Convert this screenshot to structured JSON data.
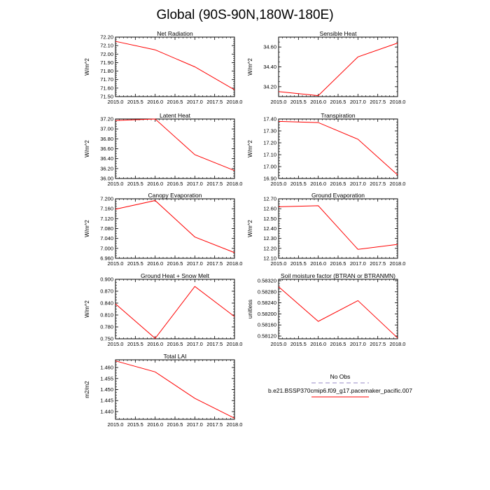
{
  "figure": {
    "title": "Global (90S-90N,180W-180E)"
  },
  "legend": {
    "entries": [
      {
        "label": "No Obs",
        "color": "#b8b0d8",
        "dashed": true
      },
      {
        "label": "b.e21.BSSP370cmip6.f09_g17.pacemaker_pacific.007",
        "color": "#ff0000",
        "dashed": false
      }
    ]
  },
  "chart_data": [
    {
      "type": "line",
      "title": "Net Radiation",
      "xlabel": "",
      "ylabel": "W/m^2",
      "xlim": [
        2015.0,
        2018.0
      ],
      "ylim": [
        71.5,
        72.2
      ],
      "xticks": [
        "2015.0",
        "2015.5",
        "2016.0",
        "2016.5",
        "2017.0",
        "2017.5",
        "2018.0"
      ],
      "yticks": [
        "71.50",
        "71.60",
        "71.70",
        "71.80",
        "71.90",
        "72.00",
        "72.10",
        "72.20"
      ],
      "series": [
        {
          "name": "b.e21.BSSP370cmip6.f09_g17.pacemaker_pacific.007",
          "x": [
            2015,
            2016,
            2017,
            2018
          ],
          "y": [
            72.15,
            72.05,
            71.85,
            71.58
          ]
        }
      ]
    },
    {
      "type": "line",
      "title": "Sensible Heat",
      "xlabel": "",
      "ylabel": "W/m^2",
      "xlim": [
        2015.0,
        2018.0
      ],
      "ylim": [
        34.1,
        34.7
      ],
      "xticks": [
        "2015.0",
        "2015.5",
        "2016.0",
        "2016.5",
        "2017.0",
        "2017.5",
        "2018.0"
      ],
      "yticks": [
        "34.20",
        "34.40",
        "34.60"
      ],
      "series": [
        {
          "name": "b.e21.BSSP370cmip6.f09_g17.pacemaker_pacific.007",
          "x": [
            2015,
            2016,
            2017,
            2018
          ],
          "y": [
            34.15,
            34.11,
            34.5,
            34.64
          ]
        }
      ]
    },
    {
      "type": "line",
      "title": "Latent Heat",
      "xlabel": "",
      "ylabel": "W/m^2",
      "xlim": [
        2015.0,
        2018.0
      ],
      "ylim": [
        36.0,
        37.2
      ],
      "xticks": [
        "2015.0",
        "2015.5",
        "2016.0",
        "2016.5",
        "2017.0",
        "2017.5",
        "2018.0"
      ],
      "yticks": [
        "36.00",
        "36.20",
        "36.40",
        "36.60",
        "36.80",
        "37.00",
        "37.20"
      ],
      "series": [
        {
          "name": "b.e21.BSSP370cmip6.f09_g17.pacemaker_pacific.007",
          "x": [
            2015,
            2016,
            2017,
            2018
          ],
          "y": [
            37.17,
            37.2,
            36.48,
            36.16
          ]
        }
      ]
    },
    {
      "type": "line",
      "title": "Transpiration",
      "xlabel": "",
      "ylabel": "W/m^2",
      "xlim": [
        2015.0,
        2018.0
      ],
      "ylim": [
        16.9,
        17.4
      ],
      "xticks": [
        "2015.0",
        "2015.5",
        "2016.0",
        "2016.5",
        "2017.0",
        "2017.5",
        "2018.0"
      ],
      "yticks": [
        "16.90",
        "17.00",
        "17.10",
        "17.20",
        "17.30",
        "17.40"
      ],
      "series": [
        {
          "name": "b.e21.BSSP370cmip6.f09_g17.pacemaker_pacific.007",
          "x": [
            2015,
            2016,
            2017,
            2018
          ],
          "y": [
            17.38,
            17.37,
            17.23,
            16.93
          ]
        }
      ]
    },
    {
      "type": "line",
      "title": "Canopy Evaporation",
      "xlabel": "",
      "ylabel": "W/m^2",
      "xlim": [
        2015.0,
        2018.0
      ],
      "ylim": [
        6.96,
        7.2
      ],
      "xticks": [
        "2015.0",
        "2015.5",
        "2016.0",
        "2016.5",
        "2017.0",
        "2017.5",
        "2018.0"
      ],
      "yticks": [
        "6.960",
        "7.000",
        "7.040",
        "7.080",
        "7.120",
        "7.160",
        "7.200"
      ],
      "series": [
        {
          "name": "b.e21.BSSP370cmip6.f09_g17.pacemaker_pacific.007",
          "x": [
            2015,
            2016,
            2017,
            2018
          ],
          "y": [
            7.158,
            7.193,
            7.046,
            6.983
          ]
        }
      ]
    },
    {
      "type": "line",
      "title": "Ground Evaporation",
      "xlabel": "",
      "ylabel": "W/m^2",
      "xlim": [
        2015.0,
        2018.0
      ],
      "ylim": [
        12.1,
        12.7
      ],
      "xticks": [
        "2015.0",
        "2015.5",
        "2016.0",
        "2016.5",
        "2017.0",
        "2017.5",
        "2018.0"
      ],
      "yticks": [
        "12.10",
        "12.20",
        "12.30",
        "12.40",
        "12.50",
        "12.60",
        "12.70"
      ],
      "series": [
        {
          "name": "b.e21.BSSP370cmip6.f09_g17.pacemaker_pacific.007",
          "x": [
            2015,
            2016,
            2017,
            2018
          ],
          "y": [
            12.62,
            12.63,
            12.19,
            12.24
          ]
        }
      ]
    },
    {
      "type": "line",
      "title": "Ground Heat + Snow Melt",
      "xlabel": "",
      "ylabel": "W/m^2",
      "xlim": [
        2015.0,
        2018.0
      ],
      "ylim": [
        0.75,
        0.9
      ],
      "xticks": [
        "2015.0",
        "2015.5",
        "2016.0",
        "2016.5",
        "2017.0",
        "2017.5",
        "2018.0"
      ],
      "yticks": [
        "0.750",
        "0.780",
        "0.810",
        "0.840",
        "0.870",
        "0.900"
      ],
      "series": [
        {
          "name": "b.e21.BSSP370cmip6.f09_g17.pacemaker_pacific.007",
          "x": [
            2015,
            2016,
            2017,
            2018
          ],
          "y": [
            0.838,
            0.751,
            0.882,
            0.806
          ]
        }
      ]
    },
    {
      "type": "line",
      "title": "Soil moisture factor (BTRAN or BTRANMN)",
      "xlabel": "",
      "ylabel": "unitless",
      "xlim": [
        2015.0,
        2018.0
      ],
      "ylim": [
        0.5811,
        0.58325
      ],
      "xticks": [
        "2015.0",
        "2015.5",
        "2016.0",
        "2016.5",
        "2017.0",
        "2017.5",
        "2018.0"
      ],
      "yticks": [
        "0.58120",
        "0.58160",
        "0.58200",
        "0.58240",
        "0.58280",
        "0.58320"
      ],
      "series": [
        {
          "name": "b.e21.BSSP370cmip6.f09_g17.pacemaker_pacific.007",
          "x": [
            2015,
            2016,
            2017,
            2018
          ],
          "y": [
            0.58298,
            0.58173,
            0.58248,
            0.58113
          ]
        }
      ]
    },
    {
      "type": "line",
      "title": "Total LAI",
      "xlabel": "",
      "ylabel": "m2/m2",
      "xlim": [
        2015.0,
        2018.0
      ],
      "ylim": [
        1.4365,
        1.4635
      ],
      "xticks": [
        "2015.0",
        "2015.5",
        "2016.0",
        "2016.5",
        "2017.0",
        "2017.5",
        "2018.0"
      ],
      "yticks": [
        "1.440",
        "1.445",
        "1.450",
        "1.455",
        "1.460"
      ],
      "series": [
        {
          "name": "b.e21.BSSP370cmip6.f09_g17.pacemaker_pacific.007",
          "x": [
            2015,
            2016,
            2017,
            2018
          ],
          "y": [
            1.463,
            1.458,
            1.446,
            1.437
          ]
        }
      ]
    }
  ]
}
